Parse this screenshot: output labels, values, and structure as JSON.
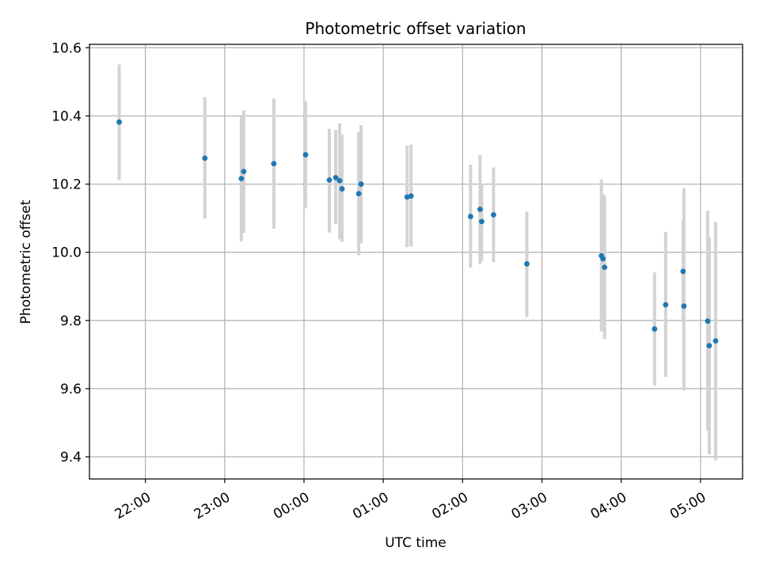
{
  "chart_data": {
    "type": "scatter",
    "title": "Photometric offset variation",
    "xlabel": "UTC time",
    "ylabel": "Photometric offset",
    "x_unit": "hours after 00:00 UTC",
    "xlim": [
      -2.705,
      5.53
    ],
    "ylim": [
      9.335,
      10.61
    ],
    "grid": true,
    "x_ticks": [
      {
        "value": -2.0,
        "label": "22:00"
      },
      {
        "value": -1.0,
        "label": "23:00"
      },
      {
        "value": 0.0,
        "label": "00:00"
      },
      {
        "value": 1.0,
        "label": "01:00"
      },
      {
        "value": 2.0,
        "label": "02:00"
      },
      {
        "value": 3.0,
        "label": "03:00"
      },
      {
        "value": 4.0,
        "label": "04:00"
      },
      {
        "value": 5.0,
        "label": "05:00"
      }
    ],
    "y_ticks": [
      {
        "value": 9.4,
        "label": "9.4"
      },
      {
        "value": 9.6,
        "label": "9.6"
      },
      {
        "value": 9.8,
        "label": "9.8"
      },
      {
        "value": 10.0,
        "label": "10.0"
      },
      {
        "value": 10.2,
        "label": "10.2"
      },
      {
        "value": 10.4,
        "label": "10.4"
      },
      {
        "value": 10.6,
        "label": "10.6"
      }
    ],
    "colors": {
      "point": "#1f77b4",
      "errorbar": "#d3d3d3",
      "grid": "#b0b0b0"
    },
    "points": [
      {
        "x": -2.33,
        "y": 10.382,
        "ylo": 10.213,
        "yhi": 10.551
      },
      {
        "x": -1.25,
        "y": 10.276,
        "ylo": 10.099,
        "yhi": 10.455
      },
      {
        "x": -0.79,
        "y": 10.216,
        "ylo": 10.032,
        "yhi": 10.398
      },
      {
        "x": -0.76,
        "y": 10.237,
        "ylo": 10.057,
        "yhi": 10.416
      },
      {
        "x": -0.38,
        "y": 10.26,
        "ylo": 10.069,
        "yhi": 10.451
      },
      {
        "x": 0.02,
        "y": 10.286,
        "ylo": 10.13,
        "yhi": 10.443
      },
      {
        "x": 0.32,
        "y": 10.212,
        "ylo": 10.058,
        "yhi": 10.362
      },
      {
        "x": 0.4,
        "y": 10.219,
        "ylo": 10.082,
        "yhi": 10.359
      },
      {
        "x": 0.45,
        "y": 10.21,
        "ylo": 10.038,
        "yhi": 10.378
      },
      {
        "x": 0.48,
        "y": 10.186,
        "ylo": 10.031,
        "yhi": 10.345
      },
      {
        "x": 0.69,
        "y": 10.172,
        "ylo": 9.991,
        "yhi": 10.353
      },
      {
        "x": 0.72,
        "y": 10.2,
        "ylo": 10.026,
        "yhi": 10.373
      },
      {
        "x": 1.3,
        "y": 10.162,
        "ylo": 10.015,
        "yhi": 10.313
      },
      {
        "x": 1.35,
        "y": 10.165,
        "ylo": 10.017,
        "yhi": 10.316
      },
      {
        "x": 2.1,
        "y": 10.105,
        "ylo": 9.955,
        "yhi": 10.257
      },
      {
        "x": 2.22,
        "y": 10.126,
        "ylo": 9.966,
        "yhi": 10.285
      },
      {
        "x": 2.24,
        "y": 10.09,
        "ylo": 9.975,
        "yhi": 10.2
      },
      {
        "x": 2.39,
        "y": 10.11,
        "ylo": 9.971,
        "yhi": 10.249
      },
      {
        "x": 2.81,
        "y": 9.966,
        "ylo": 9.81,
        "yhi": 10.119
      },
      {
        "x": 3.75,
        "y": 9.99,
        "ylo": 9.768,
        "yhi": 10.214
      },
      {
        "x": 3.77,
        "y": 9.981,
        "ylo": 9.795,
        "yhi": 10.17
      },
      {
        "x": 3.79,
        "y": 9.956,
        "ylo": 9.745,
        "yhi": 10.165
      },
      {
        "x": 4.42,
        "y": 9.775,
        "ylo": 9.609,
        "yhi": 9.941
      },
      {
        "x": 4.56,
        "y": 9.846,
        "ylo": 9.634,
        "yhi": 10.06
      },
      {
        "x": 4.78,
        "y": 9.944,
        "ylo": 9.794,
        "yhi": 10.093
      },
      {
        "x": 4.79,
        "y": 9.842,
        "ylo": 9.594,
        "yhi": 10.188
      },
      {
        "x": 5.09,
        "y": 9.798,
        "ylo": 9.476,
        "yhi": 10.122
      },
      {
        "x": 5.11,
        "y": 9.726,
        "ylo": 9.407,
        "yhi": 10.045
      },
      {
        "x": 5.19,
        "y": 9.74,
        "ylo": 9.39,
        "yhi": 10.089
      }
    ]
  }
}
